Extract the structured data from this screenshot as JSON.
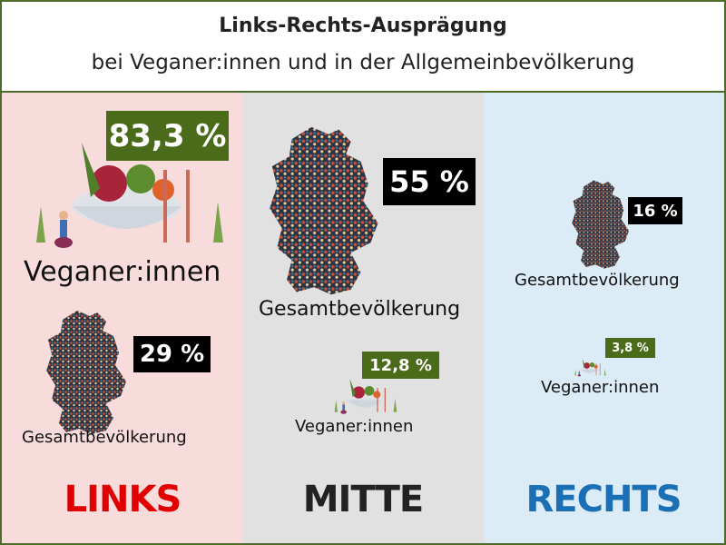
{
  "header": {
    "title": "Links-Rechts-Ausprägung",
    "subtitle": "bei Veganer:innen und in der Allgemeinbevölkerung"
  },
  "columns": [
    {
      "label": "LINKS",
      "items": [
        {
          "label": "Veganer:innen",
          "value": "83,3 %"
        },
        {
          "label": "Gesamtbevölkerung",
          "value": "29 %"
        }
      ]
    },
    {
      "label": "MITTE",
      "items": [
        {
          "label": "Gesamtbevölkerung",
          "value": "55 %"
        },
        {
          "label": "Veganer:innen",
          "value": "12,8 %"
        }
      ]
    },
    {
      "label": "RECHTS",
      "items": [
        {
          "label": "Gesamtbevölkerung",
          "value": "16 %"
        },
        {
          "label": "Veganer:innen",
          "value": "3,8 %"
        }
      ]
    }
  ]
}
